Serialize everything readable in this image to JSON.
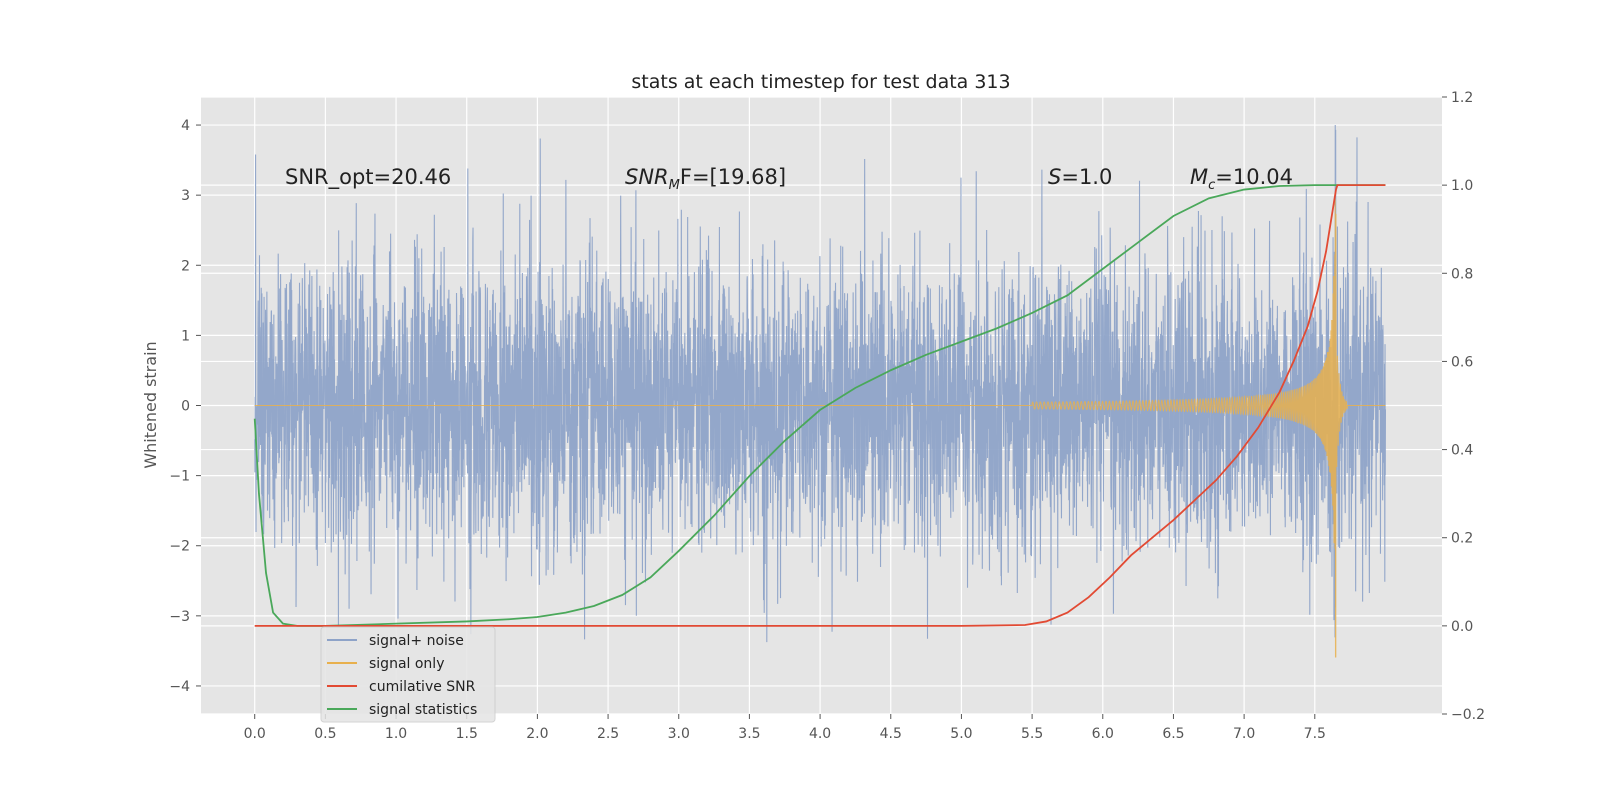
{
  "chart_data": {
    "type": "line",
    "title": "stats at each timestep for test data 313",
    "ylabel": "Whitened strain",
    "xlim": [
      -0.38,
      8.4
    ],
    "ylim": [
      -4.4,
      4.4
    ],
    "y2lim": [
      -0.2,
      1.2
    ],
    "xticks": [
      0.0,
      0.5,
      1.0,
      1.5,
      2.0,
      2.5,
      3.0,
      3.5,
      4.0,
      4.5,
      5.0,
      5.5,
      6.0,
      6.5,
      7.0,
      7.5
    ],
    "xtick_labels": [
      "0.0",
      "0.5",
      "1.0",
      "1.5",
      "2.0",
      "2.5",
      "3.0",
      "3.5",
      "4.0",
      "4.5",
      "5.0",
      "5.5",
      "6.0",
      "6.5",
      "7.0",
      "7.5"
    ],
    "yticks": [
      4,
      3,
      2,
      1,
      0,
      -1,
      -2,
      -3,
      -4
    ],
    "ytick_labels": [
      "4",
      "3",
      "2",
      "1",
      "0",
      "−1",
      "−2",
      "−3",
      "−4"
    ],
    "y2ticks": [
      1.2,
      1.0,
      0.8,
      0.6,
      0.4,
      0.2,
      0.0,
      -0.2
    ],
    "y2tick_labels": [
      "1.2",
      "1.0",
      "0.8",
      "0.6",
      "0.4",
      "0.2",
      "0.0",
      "−0.2"
    ],
    "grid": true,
    "legend_position": "lower-left",
    "colors": {
      "background": "#e5e5e5",
      "grid": "#ffffff",
      "noise": "#8ea3c8",
      "signal": "#e8b04d",
      "snr": "#e24a33",
      "stats": "#4aa85a"
    },
    "annotations": {
      "snr_opt": "SNR_opt=20.46",
      "snr_mf_base": "SNR",
      "snr_mf_sub": "M",
      "snr_mf_rest": "F=[19.68]",
      "s_italic": "S",
      "s_rest": "=1.0",
      "mc_base": "M",
      "mc_sub": "c",
      "mc_rest": "=10.04"
    },
    "series": [
      {
        "name": "signal+ noise",
        "axis": "left",
        "x_range": [
          0.0,
          8.0
        ],
        "approx_peak_range": [
          -3.9,
          4.0
        ],
        "typical_amplitude": 1.0
      },
      {
        "name": "signal only",
        "axis": "left",
        "x_range": [
          0.0,
          8.0
        ],
        "onset": 5.5,
        "merger": 7.65,
        "peak_amplitude": 3.6
      },
      {
        "name": "cumilative SNR",
        "axis": "right",
        "x": [
          0.0,
          5.0,
          5.45,
          5.6,
          5.75,
          5.9,
          6.05,
          6.2,
          6.35,
          6.5,
          6.65,
          6.8,
          6.95,
          7.1,
          7.25,
          7.35,
          7.45,
          7.52,
          7.58,
          7.62,
          7.65,
          7.66,
          8.0
        ],
        "values": [
          0.0,
          0.0,
          0.002,
          0.01,
          0.03,
          0.065,
          0.11,
          0.16,
          0.2,
          0.24,
          0.285,
          0.33,
          0.385,
          0.45,
          0.53,
          0.6,
          0.68,
          0.76,
          0.85,
          0.93,
          0.99,
          1.0,
          1.0
        ]
      },
      {
        "name": "signal statistics",
        "axis": "right",
        "x": [
          0.0,
          0.03,
          0.08,
          0.13,
          0.2,
          0.3,
          0.5,
          1.0,
          1.5,
          1.8,
          2.0,
          2.2,
          2.4,
          2.6,
          2.8,
          3.0,
          3.25,
          3.5,
          3.75,
          4.0,
          4.25,
          4.5,
          4.75,
          5.0,
          5.25,
          5.5,
          5.75,
          6.0,
          6.25,
          6.5,
          6.75,
          7.0,
          7.25,
          7.5,
          8.0
        ],
        "values": [
          0.47,
          0.3,
          0.12,
          0.03,
          0.005,
          0.0,
          0.0,
          0.005,
          0.01,
          0.015,
          0.02,
          0.03,
          0.045,
          0.07,
          0.11,
          0.17,
          0.25,
          0.34,
          0.42,
          0.49,
          0.54,
          0.58,
          0.615,
          0.645,
          0.675,
          0.71,
          0.75,
          0.81,
          0.87,
          0.93,
          0.97,
          0.99,
          0.998,
          1.0,
          1.0
        ]
      }
    ]
  }
}
